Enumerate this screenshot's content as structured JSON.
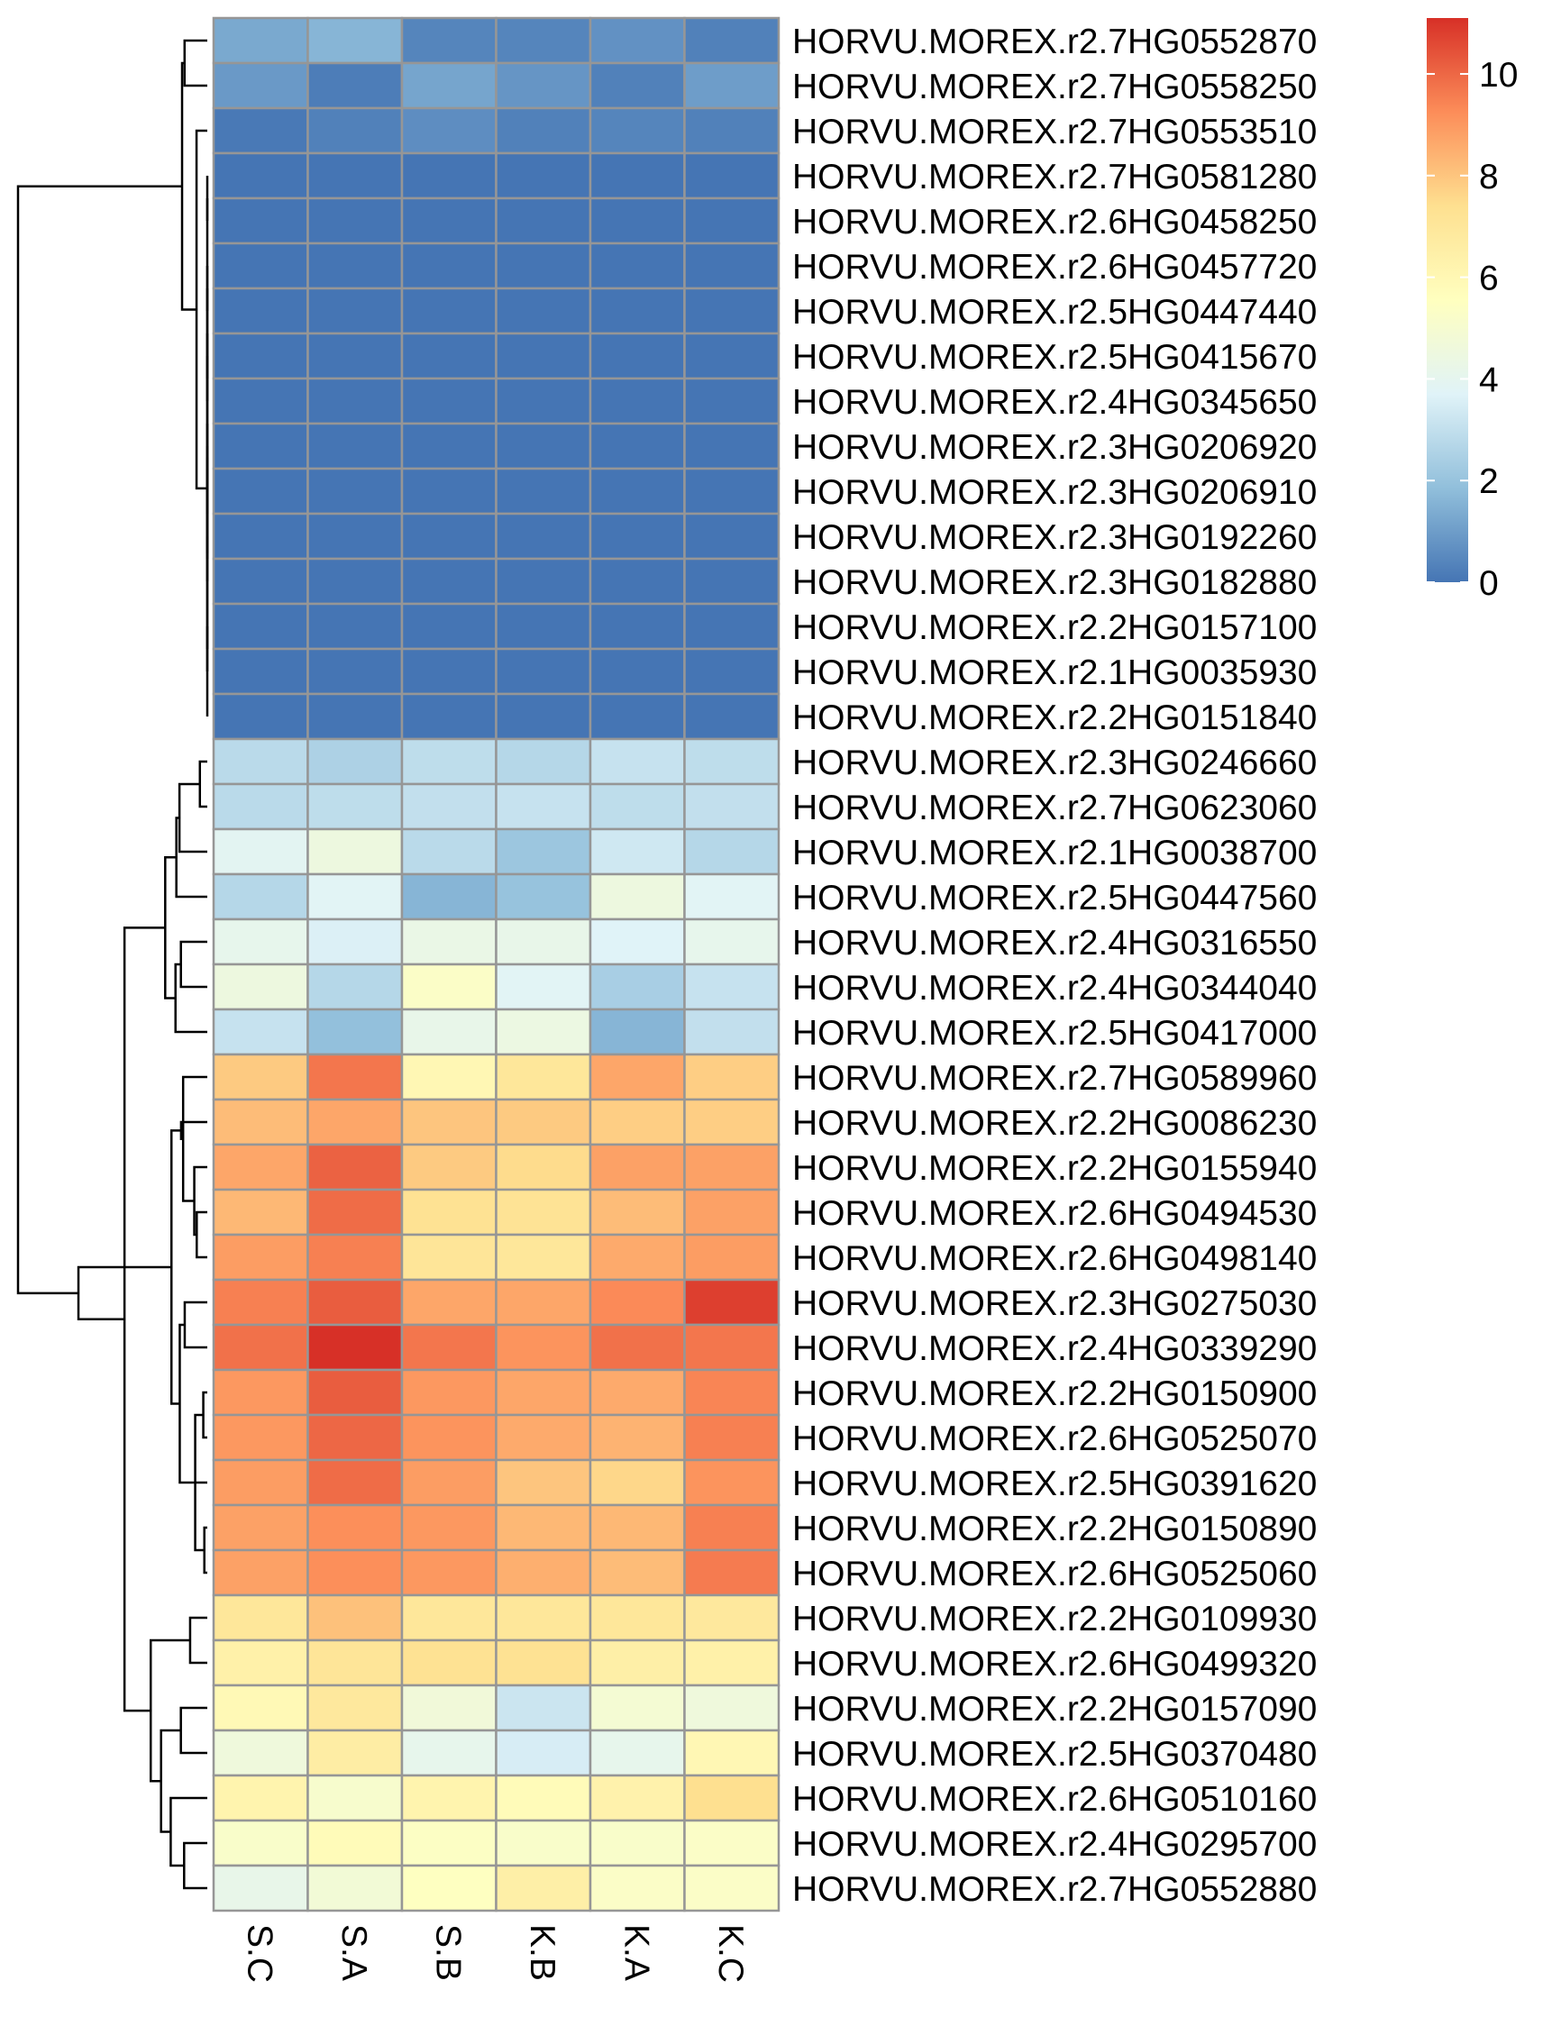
{
  "chart_data": {
    "type": "heatmap",
    "title": "",
    "xlabel": "",
    "ylabel": "",
    "columns": [
      "S.C",
      "S.A",
      "S.B",
      "K.B",
      "K.A",
      "K.C"
    ],
    "rows": [
      "HORVU.MOREX.r2.7HG0552870",
      "HORVU.MOREX.r2.7HG0558250",
      "HORVU.MOREX.r2.7HG0553510",
      "HORVU.MOREX.r2.7HG0581280",
      "HORVU.MOREX.r2.6HG0458250",
      "HORVU.MOREX.r2.6HG0457720",
      "HORVU.MOREX.r2.5HG0447440",
      "HORVU.MOREX.r2.5HG0415670",
      "HORVU.MOREX.r2.4HG0345650",
      "HORVU.MOREX.r2.3HG0206920",
      "HORVU.MOREX.r2.3HG0206910",
      "HORVU.MOREX.r2.3HG0192260",
      "HORVU.MOREX.r2.3HG0182880",
      "HORVU.MOREX.r2.2HG0157100",
      "HORVU.MOREX.r2.1HG0035930",
      "HORVU.MOREX.r2.2HG0151840",
      "HORVU.MOREX.r2.3HG0246660",
      "HORVU.MOREX.r2.7HG0623060",
      "HORVU.MOREX.r2.1HG0038700",
      "HORVU.MOREX.r2.5HG0447560",
      "HORVU.MOREX.r2.4HG0316550",
      "HORVU.MOREX.r2.4HG0344040",
      "HORVU.MOREX.r2.5HG0417000",
      "HORVU.MOREX.r2.7HG0589960",
      "HORVU.MOREX.r2.2HG0086230",
      "HORVU.MOREX.r2.2HG0155940",
      "HORVU.MOREX.r2.6HG0494530",
      "HORVU.MOREX.r2.6HG0498140",
      "HORVU.MOREX.r2.3HG0275030",
      "HORVU.MOREX.r2.4HG0339290",
      "HORVU.MOREX.r2.2HG0150900",
      "HORVU.MOREX.r2.6HG0525070",
      "HORVU.MOREX.r2.5HG0391620",
      "HORVU.MOREX.r2.2HG0150890",
      "HORVU.MOREX.r2.6HG0525060",
      "HORVU.MOREX.r2.2HG0109930",
      "HORVU.MOREX.r2.6HG0499320",
      "HORVU.MOREX.r2.2HG0157090",
      "HORVU.MOREX.r2.5HG0370480",
      "HORVU.MOREX.r2.6HG0510160",
      "HORVU.MOREX.r2.4HG0295700",
      "HORVU.MOREX.r2.7HG0552880"
    ],
    "values": [
      [
        1.3,
        1.6,
        0.4,
        0.4,
        0.7,
        0.3
      ],
      [
        0.9,
        0.2,
        1.2,
        0.8,
        0.3,
        1.0
      ],
      [
        0.1,
        0.3,
        0.6,
        0.3,
        0.4,
        0.3
      ],
      [
        0.0,
        0.0,
        0.0,
        0.0,
        0.0,
        0.0
      ],
      [
        0.0,
        0.0,
        0.0,
        0.0,
        0.0,
        0.0
      ],
      [
        0.0,
        0.0,
        0.0,
        0.0,
        0.0,
        0.0
      ],
      [
        0.0,
        0.0,
        0.0,
        0.0,
        0.0,
        0.0
      ],
      [
        0.0,
        0.0,
        0.0,
        0.0,
        0.0,
        0.0
      ],
      [
        0.0,
        0.0,
        0.0,
        0.0,
        0.0,
        0.0
      ],
      [
        0.0,
        0.0,
        0.0,
        0.0,
        0.0,
        0.0
      ],
      [
        0.0,
        0.0,
        0.0,
        0.0,
        0.0,
        0.0
      ],
      [
        0.0,
        0.0,
        0.0,
        0.0,
        0.0,
        0.0
      ],
      [
        0.0,
        0.0,
        0.0,
        0.0,
        0.0,
        0.0
      ],
      [
        0.0,
        0.0,
        0.0,
        0.0,
        0.0,
        0.0
      ],
      [
        0.0,
        0.0,
        0.0,
        0.0,
        0.0,
        0.0
      ],
      [
        0.0,
        0.0,
        0.0,
        0.0,
        0.0,
        0.0
      ],
      [
        2.8,
        2.5,
        2.9,
        2.7,
        3.1,
        2.9
      ],
      [
        2.8,
        2.9,
        3.0,
        3.1,
        2.9,
        3.0
      ],
      [
        3.9,
        4.5,
        2.8,
        2.1,
        3.3,
        2.7
      ],
      [
        2.7,
        3.8,
        1.6,
        2.0,
        4.5,
        3.8
      ],
      [
        4.1,
        3.6,
        4.3,
        4.2,
        3.7,
        4.1
      ],
      [
        4.5,
        2.7,
        5.3,
        3.8,
        2.4,
        3.1
      ],
      [
        3.1,
        1.9,
        4.2,
        4.4,
        1.6,
        3.0
      ],
      [
        7.9,
        9.7,
        6.0,
        7.0,
        8.7,
        7.8
      ],
      [
        8.2,
        8.7,
        8.0,
        7.9,
        7.8,
        7.8
      ],
      [
        8.7,
        10.1,
        7.9,
        7.5,
        8.8,
        8.8
      ],
      [
        8.3,
        9.9,
        7.3,
        7.2,
        8.2,
        8.8
      ],
      [
        8.9,
        9.5,
        7.1,
        7.0,
        8.6,
        8.9
      ],
      [
        9.5,
        10.2,
        8.7,
        8.7,
        9.3,
        10.8
      ],
      [
        9.8,
        11.1,
        9.7,
        9.1,
        9.8,
        9.7
      ],
      [
        9.0,
        10.2,
        9.0,
        8.7,
        8.6,
        9.4
      ],
      [
        9.0,
        10.0,
        9.1,
        8.6,
        8.4,
        9.5
      ],
      [
        8.9,
        9.9,
        8.9,
        8.0,
        7.6,
        9.1
      ],
      [
        8.8,
        9.2,
        9.0,
        8.3,
        8.3,
        9.5
      ],
      [
        8.8,
        9.2,
        9.0,
        8.5,
        8.2,
        9.6
      ],
      [
        7.0,
        8.1,
        7.0,
        7.0,
        7.0,
        6.9
      ],
      [
        6.4,
        7.1,
        7.3,
        7.3,
        6.5,
        6.4
      ],
      [
        5.9,
        6.9,
        4.7,
        3.2,
        4.9,
        4.6
      ],
      [
        4.6,
        6.6,
        4.1,
        3.5,
        4.1,
        6.0
      ],
      [
        6.2,
        5.1,
        6.2,
        5.8,
        6.3,
        7.4
      ],
      [
        5.2,
        5.8,
        5.4,
        5.2,
        5.2,
        5.3
      ],
      [
        4.2,
        4.8,
        5.5,
        6.5,
        5.3,
        5.3
      ]
    ],
    "legend": {
      "placement": "top-right",
      "ticks": [
        0,
        2,
        4,
        6,
        8,
        10
      ],
      "range": [
        0,
        11.1
      ]
    },
    "colorscale": [
      "#4575B4",
      "#91BFDB",
      "#E0F3F8",
      "#FFFFBF",
      "#FEE090",
      "#FC8D59",
      "#D73027"
    ],
    "cell_border_color": "#969696",
    "row_dendrogram": true,
    "column_dendrogram": false
  }
}
